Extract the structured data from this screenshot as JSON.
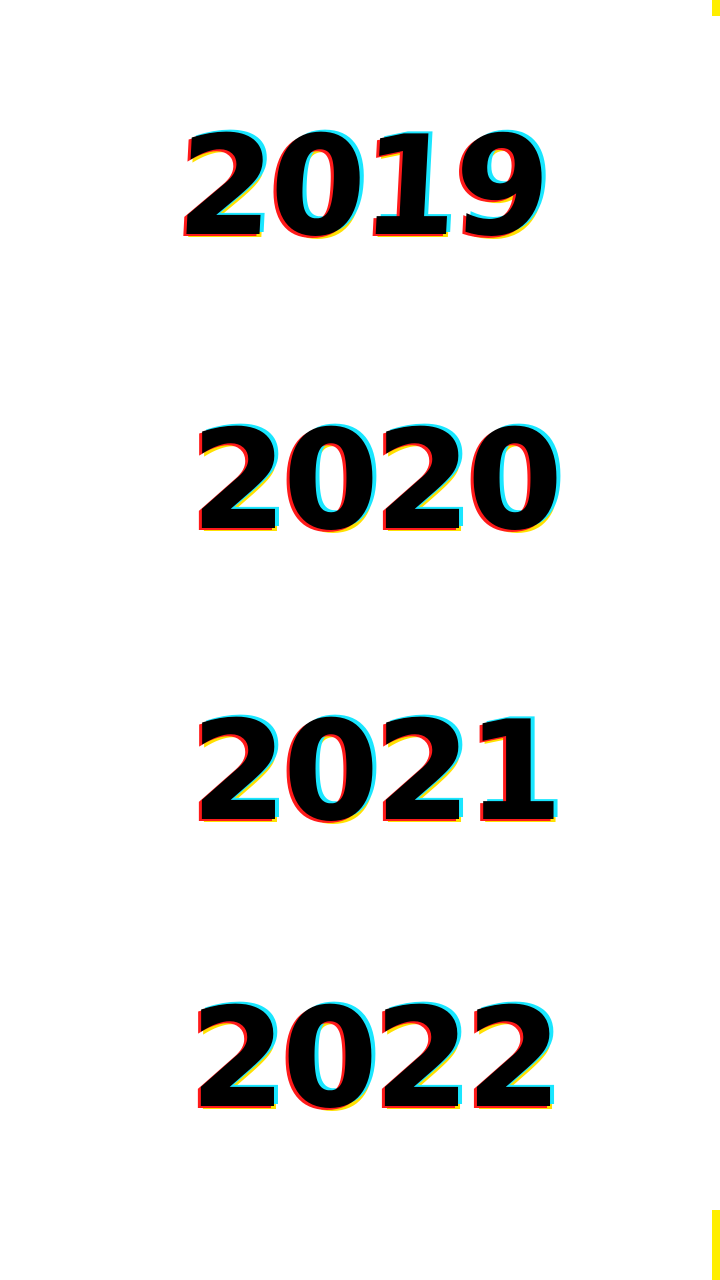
{
  "years": [
    "2019",
    "2020",
    "2021",
    "2022"
  ],
  "colors": {
    "background": "#ffffff",
    "text": "#000000",
    "glitch_red": "#ff1a1a",
    "glitch_cyan": "#19e6ff",
    "glitch_yellow": "#ffe000",
    "edge_accent": "#ffee00"
  }
}
